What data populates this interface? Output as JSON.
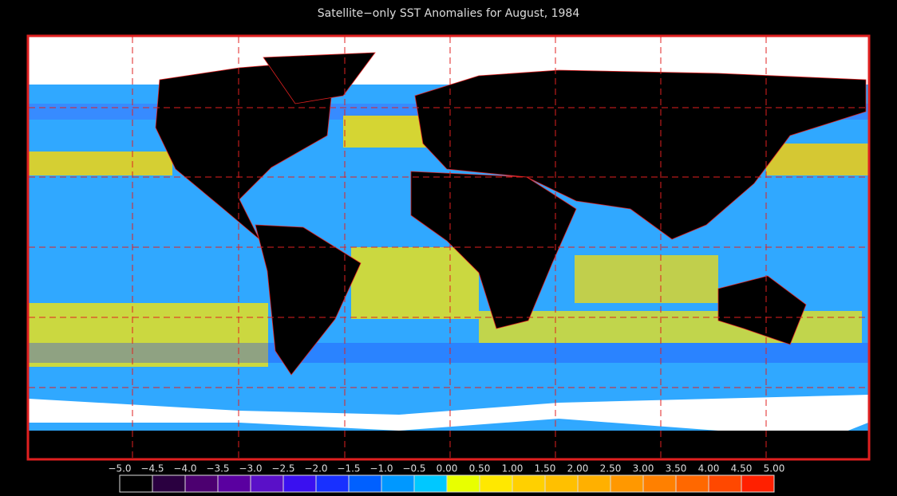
{
  "title": "Satellite−only SST Anomalies for August, 1984",
  "colorbar": {
    "ticks": [
      {
        "value": -5.0,
        "label": "−5.0"
      },
      {
        "value": -4.5,
        "label": "−4.5"
      },
      {
        "value": -4.0,
        "label": "−4.0"
      },
      {
        "value": -3.5,
        "label": "−3.5"
      },
      {
        "value": -3.0,
        "label": "−3.0"
      },
      {
        "value": -2.5,
        "label": "−2.5"
      },
      {
        "value": -2.0,
        "label": "−2.0"
      },
      {
        "value": -1.5,
        "label": "−1.5"
      },
      {
        "value": -1.0,
        "label": "−1.0"
      },
      {
        "value": -0.5,
        "label": "−0.5"
      },
      {
        "value": 0.0,
        "label": "0.00"
      },
      {
        "value": 0.5,
        "label": "0.50"
      },
      {
        "value": 1.0,
        "label": "1.00"
      },
      {
        "value": 1.5,
        "label": "1.50"
      },
      {
        "value": 2.0,
        "label": "2.00"
      },
      {
        "value": 2.5,
        "label": "2.50"
      },
      {
        "value": 3.0,
        "label": "3.00"
      },
      {
        "value": 3.5,
        "label": "3.50"
      },
      {
        "value": 4.0,
        "label": "4.00"
      },
      {
        "value": 4.5,
        "label": "4.50"
      },
      {
        "value": 5.0,
        "label": "5.00"
      }
    ],
    "colors": [
      "#000000",
      "#2a0040",
      "#4c0070",
      "#5a00a0",
      "#5a10c8",
      "#3a10f0",
      "#1830ff",
      "#0060ff",
      "#0098ff",
      "#00c8ff",
      "#e8ff00",
      "#ffe800",
      "#ffd000",
      "#ffc000",
      "#ffb000",
      "#ff9800",
      "#ff8000",
      "#ff6800",
      "#ff4800",
      "#ff2000"
    ]
  }
}
